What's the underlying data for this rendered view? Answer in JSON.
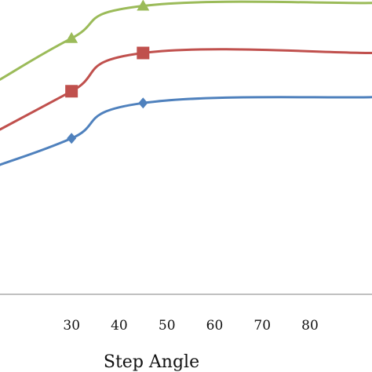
{
  "chart_data": {
    "type": "line",
    "xlabel": "Step Angle",
    "ylabel": "",
    "x_ticks": [
      "30",
      "40",
      "50",
      "60",
      "70",
      "80"
    ],
    "xlim": [
      15,
      93
    ],
    "ylim": [
      0,
      1
    ],
    "smooth": true,
    "series": [
      {
        "color": "#9bbb59",
        "marker": "triangle",
        "x": [
          15,
          30,
          45,
          93
        ],
        "y": [
          0.73,
          0.87,
          0.98,
          0.99
        ],
        "marked_x": [
          30,
          45
        ]
      },
      {
        "color": "#c0504d",
        "marker": "square",
        "x": [
          15,
          30,
          45,
          93
        ],
        "y": [
          0.56,
          0.69,
          0.82,
          0.82
        ],
        "marked_x": [
          30,
          45
        ]
      },
      {
        "color": "#4f81bd",
        "marker": "diamond",
        "x": [
          15,
          30,
          45,
          93
        ],
        "y": [
          0.44,
          0.53,
          0.65,
          0.67
        ],
        "marked_x": [
          30,
          45
        ]
      }
    ]
  }
}
